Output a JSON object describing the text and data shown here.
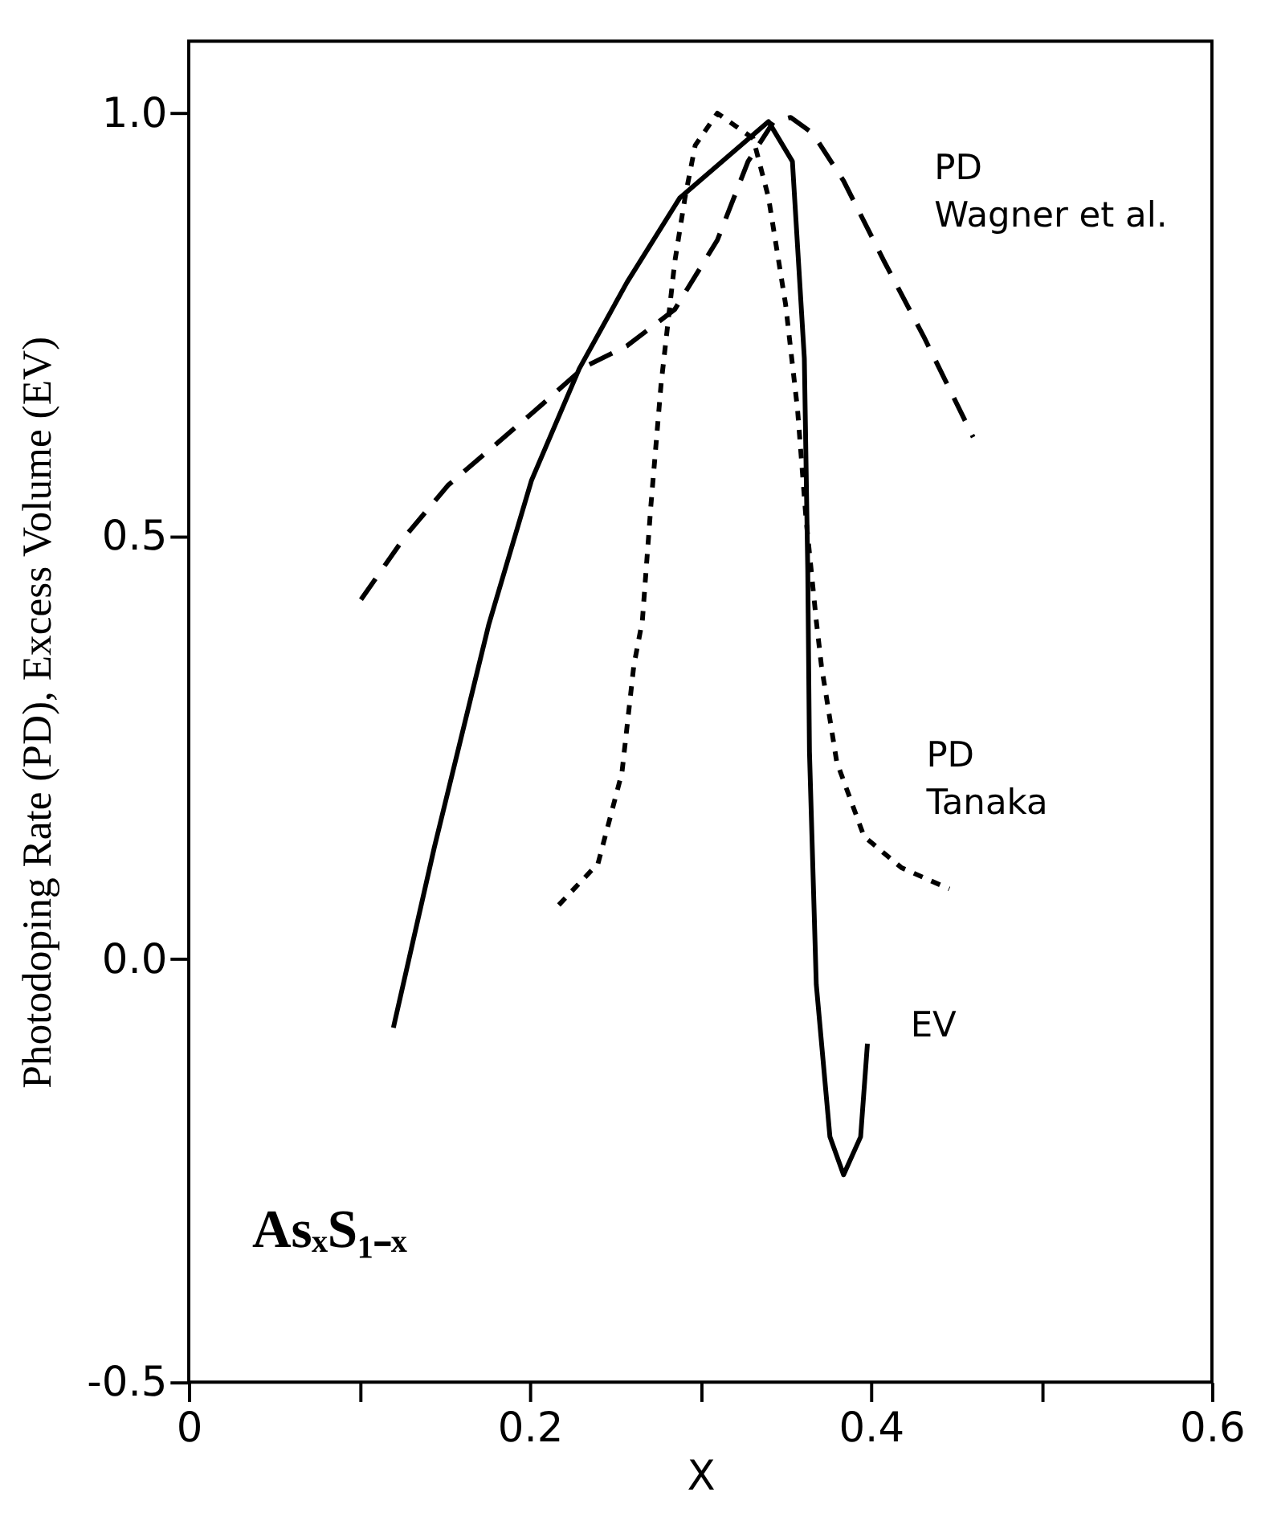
{
  "chart_data": {
    "type": "line",
    "xlabel": "X",
    "ylabel": "Photodoping Rate (PD),    Excess Volume (EV)",
    "xlim": [
      0,
      0.6
    ],
    "ylim": [
      -0.5,
      1.085
    ],
    "xticks": [
      0,
      {
        "value": 0.1,
        "label": null
      },
      0.2,
      {
        "value": 0.3,
        "label": null
      },
      0.4,
      {
        "value": 0.5,
        "label": null
      },
      0.6
    ],
    "yticks": [
      -0.5,
      {
        "value": 0,
        "label": "0.0"
      },
      0.5,
      {
        "value": 1,
        "label": "1.0"
      }
    ],
    "grid": false,
    "marker": "none",
    "series": [
      {
        "color": "#000000",
        "line_style": "solid",
        "x": [
          0.12,
          0.144,
          0.176,
          0.201,
          0.229,
          0.257,
          0.288,
          0.34,
          0.354,
          0.361,
          0.363,
          0.364,
          0.368,
          0.376,
          0.384,
          0.394,
          0.398
        ],
        "values": [
          -0.081,
          0.132,
          0.396,
          0.566,
          0.698,
          0.8,
          0.9,
          0.99,
          0.943,
          0.71,
          0.46,
          0.245,
          -0.03,
          -0.21,
          -0.255,
          -0.21,
          -0.1
        ]
      },
      {
        "color": "#000000",
        "line_style": "dotted",
        "x": [
          0.217,
          0.24,
          0.254,
          0.261,
          0.266,
          0.271,
          0.277,
          0.285,
          0.291,
          0.297,
          0.31,
          0.331,
          0.34,
          0.35,
          0.357,
          0.362,
          0.368,
          0.371,
          0.38,
          0.396,
          0.418,
          0.446
        ],
        "values": [
          0.064,
          0.113,
          0.22,
          0.347,
          0.4,
          0.536,
          0.68,
          0.824,
          0.9,
          0.962,
          1.0,
          0.97,
          0.9,
          0.774,
          0.65,
          0.52,
          0.4,
          0.347,
          0.233,
          0.145,
          0.108,
          0.083
        ]
      },
      {
        "color": "#000000",
        "line_style": "dashed",
        "x": [
          0.101,
          0.127,
          0.152,
          0.204,
          0.232,
          0.257,
          0.285,
          0.31,
          0.328,
          0.343,
          0.353,
          0.366,
          0.384,
          0.408,
          0.431,
          0.46
        ],
        "values": [
          0.425,
          0.5,
          0.56,
          0.65,
          0.7,
          0.725,
          0.768,
          0.85,
          0.943,
          0.99,
          0.995,
          0.976,
          0.92,
          0.824,
          0.736,
          0.617
        ]
      }
    ],
    "annotations": [
      "PD\nWagner et al.",
      "PD\nTanaka",
      "EV",
      "AsₓS₁₋ₓ"
    ]
  }
}
